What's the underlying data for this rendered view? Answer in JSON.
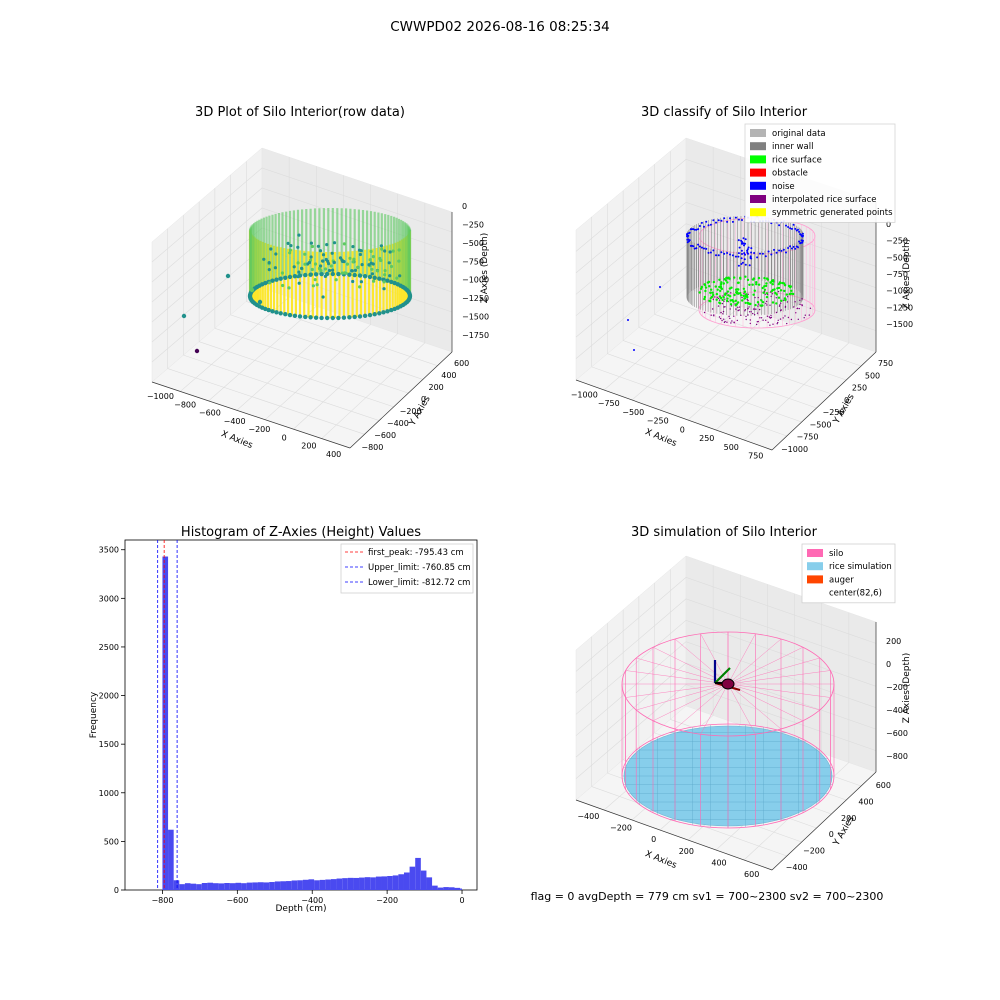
{
  "figure": {
    "suptitle": "CWWPD02 2026-08-16 08:25:34",
    "status_line": "flag = 0     avgDepth = 779 cm  sv1 = 700~2300  sv2 = 700~2300"
  },
  "chart_data": [
    {
      "type": "scatter",
      "panel": "3d-raw",
      "title": "3D Plot of Silo Interior(row data)",
      "xlabel": "X Axies",
      "ylabel": "Y Axies",
      "zlabel": "Z Axies (Depth)",
      "xticks": [
        "−1000",
        "−800",
        "−600",
        "−400",
        "−200",
        "0",
        "200",
        "400"
      ],
      "yticks": [
        "−800",
        "−600",
        "−400",
        "−200",
        "0",
        "200",
        "400",
        "600"
      ],
      "zticks": [
        "0",
        "−250",
        "−500",
        "−750",
        "−1000",
        "−1250",
        "−1500",
        "−1750"
      ],
      "colormap": [
        "#440154",
        "#21918c",
        "#5ec962",
        "#fde725"
      ]
    },
    {
      "type": "scatter",
      "panel": "3d-classify",
      "title": "3D classify of Silo Interior",
      "xlabel": "X Axies",
      "ylabel": "Y Axies",
      "zlabel": "Z Axies (Depth)",
      "xticks": [
        "−1000",
        "−750",
        "−500",
        "−250",
        "0",
        "250",
        "500",
        "750"
      ],
      "yticks": [
        "−1000",
        "−750",
        "−500",
        "−250",
        "0",
        "250",
        "500",
        "750"
      ],
      "zticks": [
        "0",
        "−250",
        "−500",
        "−750",
        "−1000",
        "−1250",
        "−1500"
      ],
      "legend_position": "top-right",
      "legend": [
        {
          "label": "original data",
          "color": "#b4b4b4"
        },
        {
          "label": "inner wall",
          "color": "#808080"
        },
        {
          "label": "rice surface",
          "color": "#00ff00"
        },
        {
          "label": "obstacle",
          "color": "#ff0000"
        },
        {
          "label": "noise",
          "color": "#0000ff"
        },
        {
          "label": "interpolated rice surface",
          "color": "#800080"
        },
        {
          "label": "symmetric generated points",
          "color": "#ffff00"
        }
      ]
    },
    {
      "type": "bar",
      "panel": "histogram",
      "title": "Histogram of Z-Axies (Height) Values",
      "xlabel": "Depth (cm)",
      "ylabel": "Frequency",
      "xlim": [
        -900,
        40
      ],
      "ylim": [
        0,
        3600
      ],
      "xticks": [
        -800,
        -600,
        -400,
        -200,
        0
      ],
      "yticks": [
        0,
        500,
        1000,
        1500,
        2000,
        2500,
        3000,
        3500
      ],
      "bar_color": "#4a4af0",
      "bins": [
        [
          -800,
          -785,
          3430
        ],
        [
          -785,
          -770,
          620
        ],
        [
          -770,
          -755,
          100
        ],
        [
          -755,
          -740,
          60
        ],
        [
          -740,
          -725,
          70
        ],
        [
          -725,
          -710,
          65
        ],
        [
          -710,
          -695,
          60
        ],
        [
          -695,
          -680,
          72
        ],
        [
          -680,
          -665,
          75
        ],
        [
          -665,
          -650,
          70
        ],
        [
          -650,
          -635,
          68
        ],
        [
          -635,
          -620,
          72
        ],
        [
          -620,
          -605,
          70
        ],
        [
          -605,
          -590,
          74
        ],
        [
          -590,
          -575,
          70
        ],
        [
          -575,
          -560,
          76
        ],
        [
          -560,
          -545,
          78
        ],
        [
          -545,
          -530,
          80
        ],
        [
          -530,
          -515,
          78
        ],
        [
          -515,
          -500,
          82
        ],
        [
          -500,
          -485,
          88
        ],
        [
          -485,
          -470,
          90
        ],
        [
          -470,
          -455,
          92
        ],
        [
          -455,
          -440,
          98
        ],
        [
          -440,
          -425,
          100
        ],
        [
          -425,
          -410,
          105
        ],
        [
          -410,
          -395,
          110
        ],
        [
          -395,
          -380,
          100
        ],
        [
          -380,
          -365,
          104
        ],
        [
          -365,
          -350,
          108
        ],
        [
          -350,
          -335,
          112
        ],
        [
          -335,
          -320,
          118
        ],
        [
          -320,
          -305,
          122
        ],
        [
          -305,
          -290,
          125
        ],
        [
          -290,
          -275,
          124
        ],
        [
          -275,
          -260,
          128
        ],
        [
          -260,
          -245,
          132
        ],
        [
          -245,
          -230,
          130
        ],
        [
          -230,
          -215,
          138
        ],
        [
          -215,
          -200,
          140
        ],
        [
          -200,
          -185,
          144
        ],
        [
          -185,
          -170,
          150
        ],
        [
          -170,
          -155,
          162
        ],
        [
          -155,
          -140,
          180
        ],
        [
          -140,
          -125,
          240
        ],
        [
          -125,
          -110,
          330
        ],
        [
          -110,
          -95,
          200
        ],
        [
          -95,
          -80,
          130
        ],
        [
          -80,
          -65,
          45
        ],
        [
          -65,
          -50,
          25
        ],
        [
          -50,
          -35,
          30
        ],
        [
          -35,
          -20,
          28
        ],
        [
          -20,
          -5,
          22
        ],
        [
          -5,
          0,
          15
        ]
      ],
      "vlines": [
        {
          "label": "first_peak: -795.43 cm",
          "x": -795.43,
          "color": "#ff0000"
        },
        {
          "label": "Upper_limit: -760.85 cm",
          "x": -760.85,
          "color": "#0000ff"
        },
        {
          "label": "Lower_limit: -812.72 cm",
          "x": -812.72,
          "color": "#0000ff"
        }
      ],
      "legend_position": "top-right"
    },
    {
      "type": "scatter",
      "panel": "3d-simulation",
      "title": "3D simulation of Silo Interior",
      "xlabel": "X Axies",
      "ylabel": "Y Axies",
      "zlabel": "Z Axies (Depth)",
      "xticks": [
        "−400",
        "−200",
        "0",
        "200",
        "400",
        "600"
      ],
      "yticks": [
        "−400",
        "−200",
        "0",
        "200",
        "400",
        "600"
      ],
      "zticks": [
        "200",
        "0",
        "−200",
        "−400",
        "−600",
        "−800"
      ],
      "legend_position": "top-right",
      "legend": [
        {
          "label": "silo",
          "color": "#ff69b4"
        },
        {
          "label": "rice simulation",
          "color": "#87ceeb"
        },
        {
          "label": "auger",
          "color": "#ff4500"
        },
        {
          "label": "center(82,6)",
          "color": "#ffffff"
        }
      ]
    }
  ]
}
